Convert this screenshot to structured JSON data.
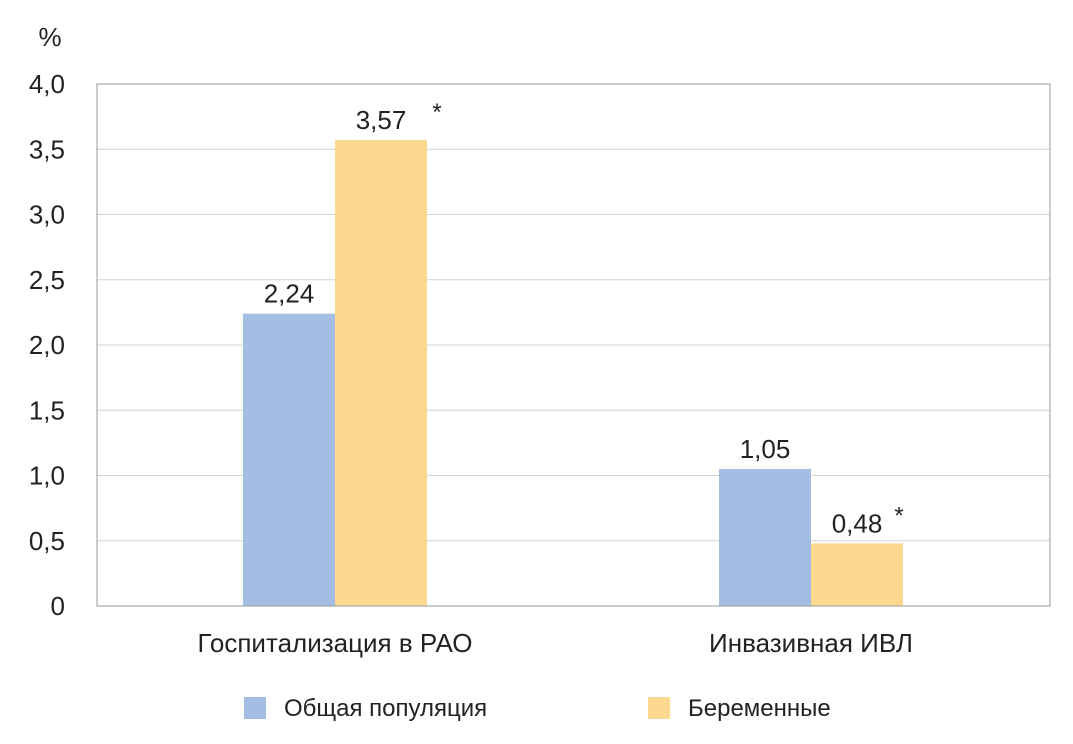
{
  "chart_data": {
    "type": "bar",
    "ylabel": "%",
    "ylim": [
      0,
      4.0
    ],
    "yticks": [
      "0",
      "0,5",
      "1,0",
      "1,5",
      "2,0",
      "2,5",
      "3,0",
      "3,5",
      "4,0"
    ],
    "categories": [
      "Госпитализация в РАО",
      "Инвазивная ИВЛ"
    ],
    "series": [
      {
        "name": "Общая популяция",
        "color": "#a4bde2",
        "values": [
          2.24,
          1.05
        ],
        "labels": [
          "2,24",
          "1,05"
        ],
        "marks": [
          "",
          ""
        ]
      },
      {
        "name": "Беременные",
        "color": "#fcd98f",
        "values": [
          3.57,
          0.48
        ],
        "labels": [
          "3,57",
          "0,48"
        ],
        "marks": [
          "*",
          "*"
        ]
      }
    ],
    "grid": true,
    "legend": "bottom"
  }
}
